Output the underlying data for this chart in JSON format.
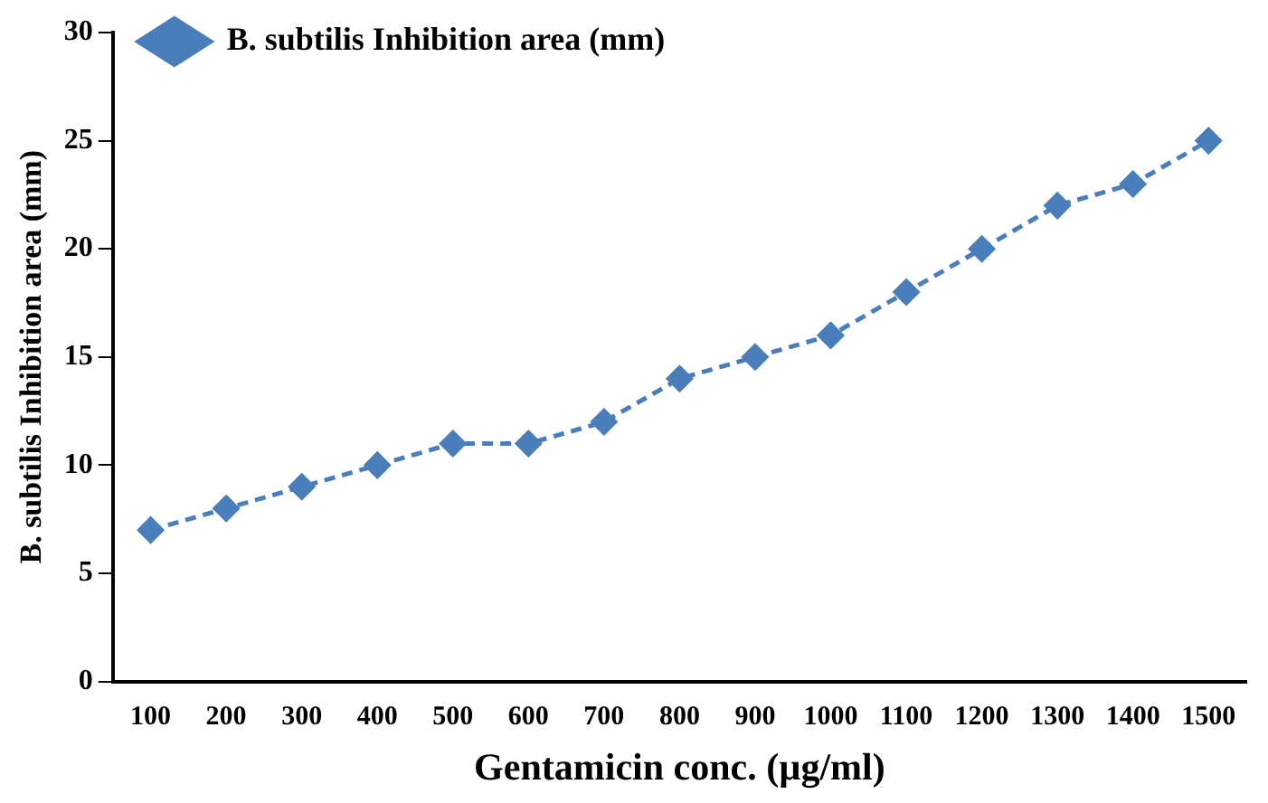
{
  "chart_data": {
    "type": "line",
    "xlabel": "Gentamicin conc. (µg/ml)",
    "ylabel": "B. subtilis Inhibition area (mm)",
    "categories": [
      "100",
      "200",
      "300",
      "400",
      "500",
      "600",
      "700",
      "800",
      "900",
      "1000",
      "1100",
      "1200",
      "1300",
      "1400",
      "1500"
    ],
    "series": [
      {
        "name": "B. subtilis Inhibition area (mm)",
        "color": "#4a7ebb",
        "values": [
          7,
          8,
          9,
          10,
          11,
          11,
          12,
          14,
          15,
          16,
          18,
          20,
          22,
          23,
          25
        ]
      }
    ],
    "ylim": [
      0,
      30
    ],
    "yticks": [
      0,
      5,
      10,
      15,
      20,
      25,
      30
    ],
    "grid": false,
    "legend": "top left",
    "marker": "diamond",
    "line_style": "dashed"
  }
}
